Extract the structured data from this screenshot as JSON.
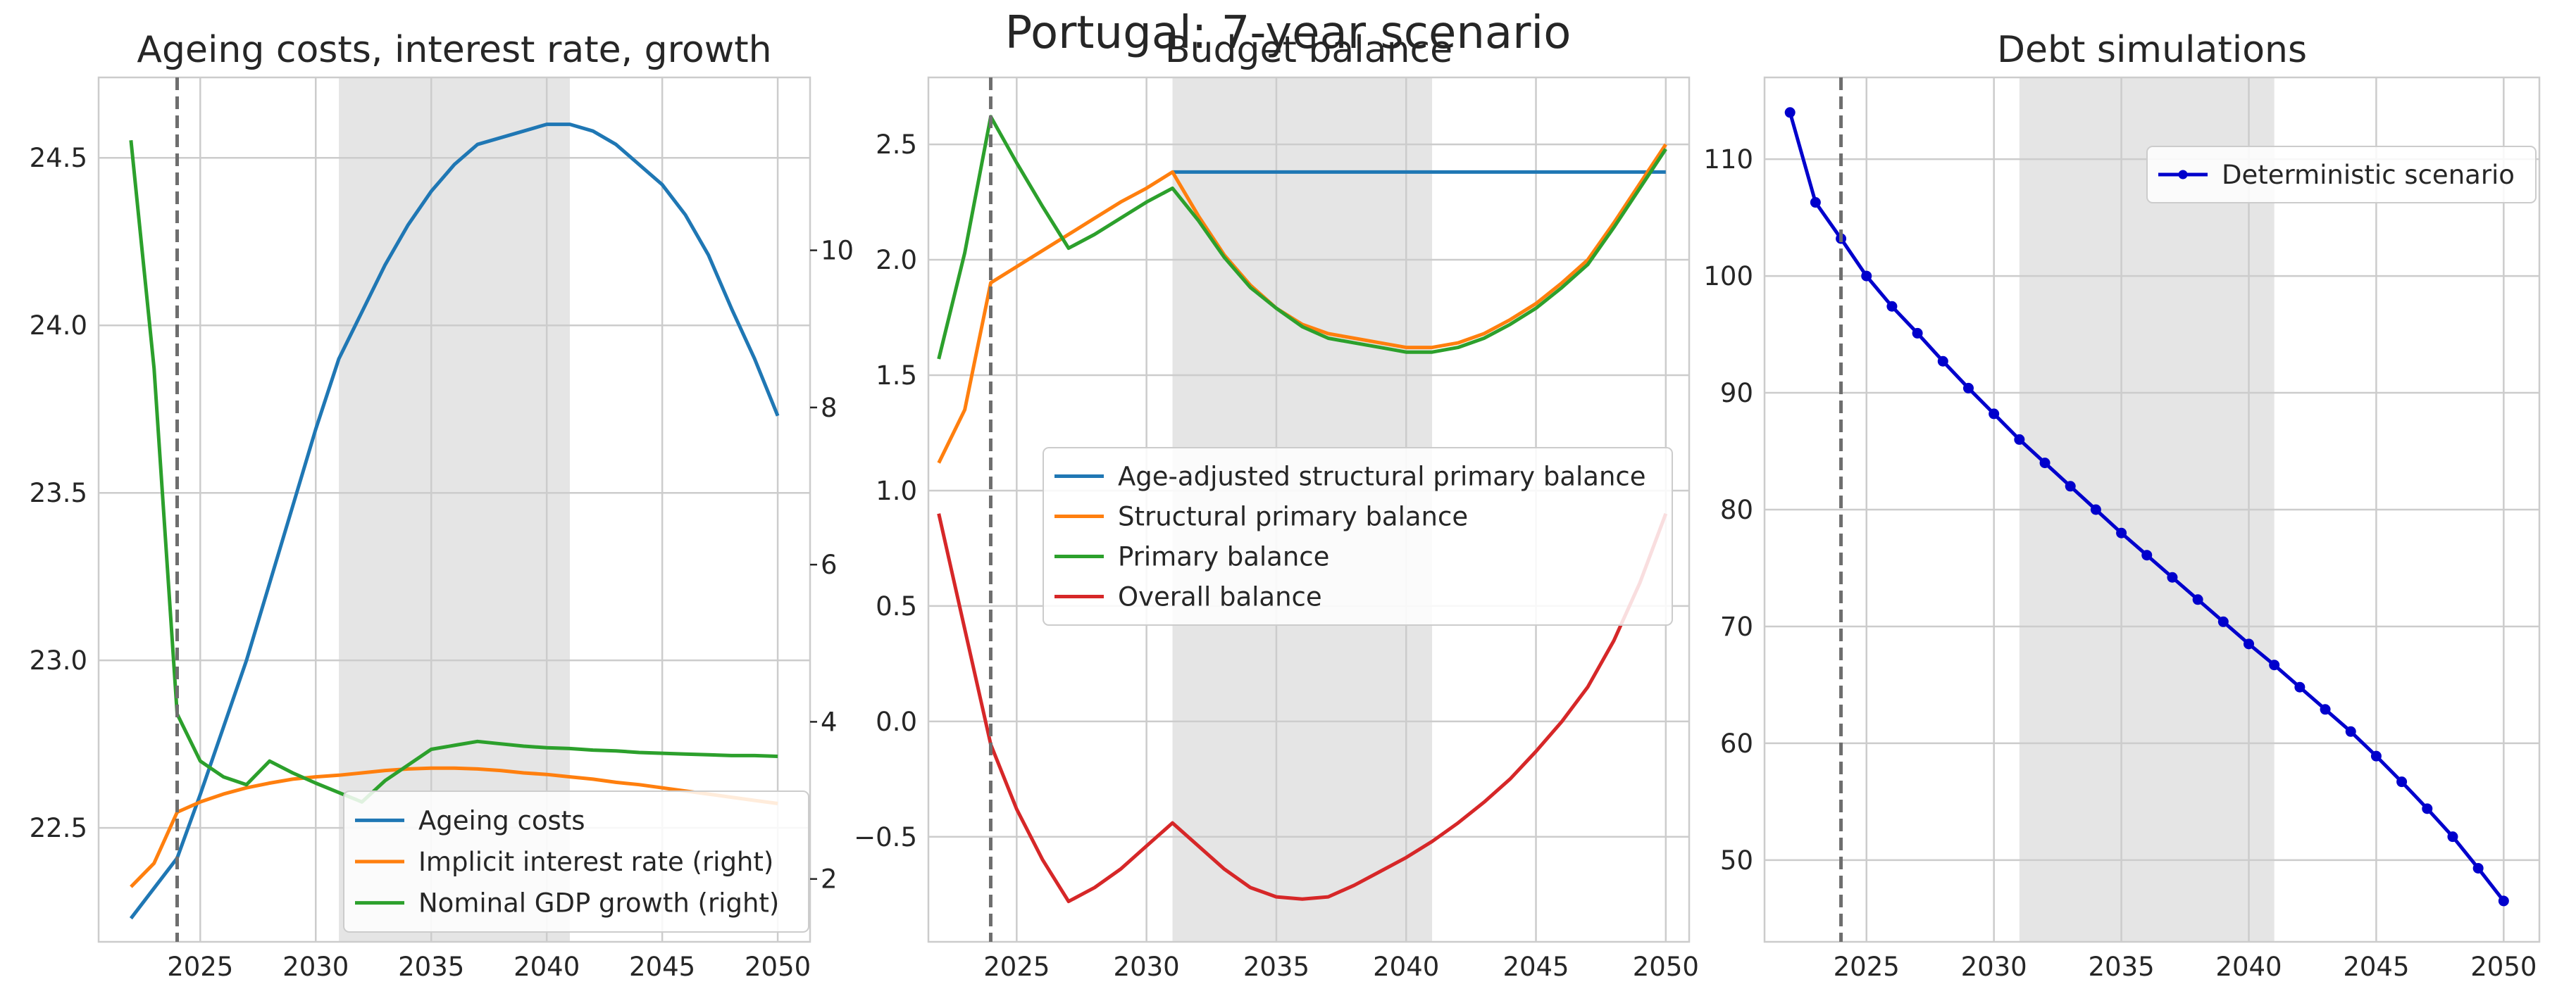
{
  "figure": {
    "title": "Portugal: 7-year scenario"
  },
  "colors": {
    "blue": "#1f77b4",
    "orange": "#ff7f0e",
    "green": "#2ca02c",
    "red": "#d62728",
    "debt": "#0000cc",
    "shade": "#e5e5e5",
    "grid": "#cccccc",
    "vline": "#6e6e6e"
  },
  "chart_data": [
    {
      "type": "line",
      "title": "Ageing costs, interest rate, growth",
      "shaded_span": [
        2031,
        2041
      ],
      "vline": 2024,
      "xlim": [
        2020.6,
        2051.4
      ],
      "xticks": [
        2025,
        2030,
        2035,
        2040,
        2045,
        2050
      ],
      "ylim": [
        22.16,
        24.74
      ],
      "yticks": [
        22.5,
        23.0,
        23.5,
        24.0,
        24.5
      ],
      "ytick_labels": [
        "22.5",
        "23.0",
        "23.5",
        "24.0",
        "24.5"
      ],
      "y2lim": [
        1.2,
        12.2
      ],
      "y2ticks": [
        2,
        4,
        6,
        8,
        10
      ],
      "y2tick_labels": [
        "2",
        "4",
        "6",
        "8",
        "10"
      ],
      "legend_position": "lower right",
      "x": [
        2022,
        2023,
        2024,
        2025,
        2026,
        2027,
        2028,
        2029,
        2030,
        2031,
        2032,
        2033,
        2034,
        2035,
        2036,
        2037,
        2038,
        2039,
        2040,
        2041,
        2042,
        2043,
        2044,
        2045,
        2046,
        2047,
        2048,
        2049,
        2050
      ],
      "series": [
        {
          "name": "Ageing costs",
          "color": "#1f77b4",
          "axis": "left",
          "values": [
            22.23,
            22.32,
            22.41,
            22.6,
            22.8,
            23.0,
            23.23,
            23.46,
            23.69,
            23.9,
            24.04,
            24.18,
            24.3,
            24.4,
            24.48,
            24.54,
            24.56,
            24.58,
            24.6,
            24.6,
            24.58,
            24.54,
            24.48,
            24.42,
            24.33,
            24.21,
            24.05,
            23.9,
            23.73
          ]
        },
        {
          "name": "Implicit interest rate (right)",
          "color": "#ff7f0e",
          "axis": "right",
          "values": [
            1.9,
            2.2,
            2.85,
            2.98,
            3.08,
            3.16,
            3.22,
            3.27,
            3.3,
            3.32,
            3.35,
            3.38,
            3.4,
            3.41,
            3.41,
            3.4,
            3.38,
            3.35,
            3.33,
            3.3,
            3.27,
            3.23,
            3.2,
            3.16,
            3.12,
            3.08,
            3.04,
            3.0,
            2.96
          ]
        },
        {
          "name": "Nominal GDP growth (right)",
          "color": "#2ca02c",
          "axis": "right",
          "values": [
            11.4,
            8.5,
            4.1,
            3.5,
            3.3,
            3.2,
            3.5,
            3.35,
            3.22,
            3.1,
            2.98,
            3.25,
            3.45,
            3.65,
            3.7,
            3.75,
            3.72,
            3.69,
            3.67,
            3.66,
            3.64,
            3.63,
            3.61,
            3.6,
            3.59,
            3.58,
            3.57,
            3.57,
            3.56
          ]
        }
      ]
    },
    {
      "type": "line",
      "title": "Budget balance",
      "shaded_span": [
        2031,
        2041
      ],
      "vline": 2024,
      "xlim": [
        2021.6,
        2050.9
      ],
      "xticks": [
        2025,
        2030,
        2035,
        2040,
        2045,
        2050
      ],
      "ylim": [
        -0.955,
        2.79
      ],
      "yticks": [
        -0.5,
        0.0,
        0.5,
        1.0,
        1.5,
        2.0,
        2.5
      ],
      "ytick_labels": [
        "−0.5",
        "0.0",
        "0.5",
        "1.0",
        "1.5",
        "2.0",
        "2.5"
      ],
      "legend_position": "center left",
      "x": [
        2022,
        2023,
        2024,
        2025,
        2026,
        2027,
        2028,
        2029,
        2030,
        2031,
        2032,
        2033,
        2034,
        2035,
        2036,
        2037,
        2038,
        2039,
        2040,
        2041,
        2042,
        2043,
        2044,
        2045,
        2046,
        2047,
        2048,
        2049,
        2050
      ],
      "series": [
        {
          "name": "Age-adjusted structural primary balance",
          "color": "#1f77b4",
          "x": [
            2031,
            2032,
            2033,
            2034,
            2035,
            2036,
            2037,
            2038,
            2039,
            2040,
            2041,
            2042,
            2043,
            2044,
            2045,
            2046,
            2047,
            2048,
            2049,
            2050
          ],
          "values": [
            2.38,
            2.38,
            2.38,
            2.38,
            2.38,
            2.38,
            2.38,
            2.38,
            2.38,
            2.38,
            2.38,
            2.38,
            2.38,
            2.38,
            2.38,
            2.38,
            2.38,
            2.38,
            2.38,
            2.38
          ]
        },
        {
          "name": "Structural primary balance",
          "color": "#ff7f0e",
          "values": [
            1.12,
            1.35,
            1.9,
            1.97,
            2.04,
            2.11,
            2.18,
            2.25,
            2.31,
            2.38,
            2.19,
            2.02,
            1.89,
            1.79,
            1.72,
            1.68,
            1.66,
            1.64,
            1.62,
            1.62,
            1.64,
            1.68,
            1.74,
            1.81,
            1.9,
            2.0,
            2.16,
            2.33,
            2.5
          ]
        },
        {
          "name": "Primary balance",
          "color": "#2ca02c",
          "values": [
            1.57,
            2.03,
            2.62,
            2.42,
            2.23,
            2.05,
            2.11,
            2.18,
            2.25,
            2.31,
            2.17,
            2.01,
            1.88,
            1.79,
            1.71,
            1.66,
            1.64,
            1.62,
            1.6,
            1.6,
            1.62,
            1.66,
            1.72,
            1.79,
            1.88,
            1.98,
            2.14,
            2.31,
            2.48
          ]
        },
        {
          "name": "Overall balance",
          "color": "#d62728",
          "values": [
            0.9,
            0.4,
            -0.1,
            -0.38,
            -0.6,
            -0.78,
            -0.72,
            -0.64,
            -0.54,
            -0.44,
            -0.54,
            -0.64,
            -0.72,
            -0.76,
            -0.77,
            -0.76,
            -0.71,
            -0.65,
            -0.59,
            -0.52,
            -0.44,
            -0.35,
            -0.25,
            -0.13,
            0.0,
            0.15,
            0.35,
            0.6,
            0.9
          ]
        }
      ]
    },
    {
      "type": "line",
      "title": "Debt simulations",
      "shaded_span": [
        2031,
        2041
      ],
      "vline": 2024,
      "xlim": [
        2021.0,
        2051.4
      ],
      "xticks": [
        2025,
        2030,
        2035,
        2040,
        2045,
        2050
      ],
      "ylim": [
        43.0,
        117.0
      ],
      "yticks": [
        50,
        60,
        70,
        80,
        90,
        100,
        110
      ],
      "ytick_labels": [
        "50",
        "60",
        "70",
        "80",
        "90",
        "100",
        "110"
      ],
      "legend_position": "upper right",
      "x": [
        2022,
        2023,
        2024,
        2025,
        2026,
        2027,
        2028,
        2029,
        2030,
        2031,
        2032,
        2033,
        2034,
        2035,
        2036,
        2037,
        2038,
        2039,
        2040,
        2041,
        2042,
        2043,
        2044,
        2045,
        2046,
        2047,
        2048,
        2049,
        2050
      ],
      "series": [
        {
          "name": "Deterministic scenario",
          "color": "#0000cc",
          "markers": true,
          "values": [
            114.0,
            106.3,
            103.2,
            100.0,
            97.4,
            95.1,
            92.7,
            90.4,
            88.2,
            86.0,
            84.0,
            82.0,
            80.0,
            78.0,
            76.1,
            74.2,
            72.3,
            70.4,
            68.5,
            66.7,
            64.8,
            62.9,
            61.0,
            58.9,
            56.7,
            54.4,
            52.0,
            49.3,
            46.5
          ]
        }
      ]
    }
  ]
}
